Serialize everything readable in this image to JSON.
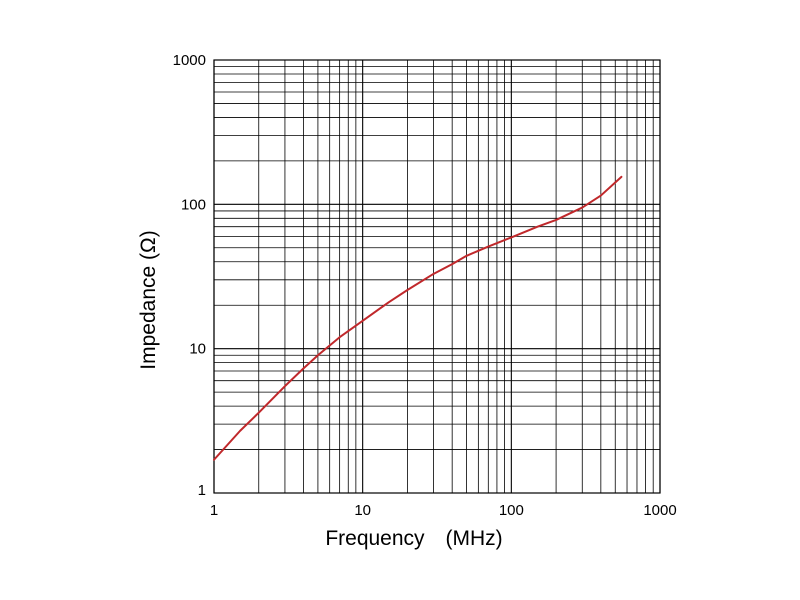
{
  "chart_data": {
    "type": "line",
    "title": "",
    "xlabel": "Frequency　(MHz)",
    "ylabel": "Impedance (Ω)",
    "xscale": "log",
    "yscale": "log",
    "xlim": [
      1,
      1000
    ],
    "ylim": [
      1,
      1000
    ],
    "grid": true,
    "x_tick_labels": [
      "1",
      "10",
      "100",
      "1000"
    ],
    "y_tick_labels": [
      "1",
      "10",
      "100",
      "1000"
    ],
    "line_color": "#c0282b",
    "series": [
      {
        "x": [
          1,
          1.5,
          2,
          3,
          4,
          5,
          7,
          10,
          15,
          20,
          30,
          40,
          50,
          70,
          100,
          150,
          200,
          300,
          400,
          550
        ],
        "y": [
          1.7,
          2.7,
          3.6,
          5.5,
          7.3,
          9.0,
          12.0,
          15.6,
          21.0,
          25.5,
          33.0,
          38.5,
          44.0,
          51.0,
          59.0,
          70.0,
          78.0,
          95.0,
          115.0,
          155.0
        ]
      }
    ]
  }
}
